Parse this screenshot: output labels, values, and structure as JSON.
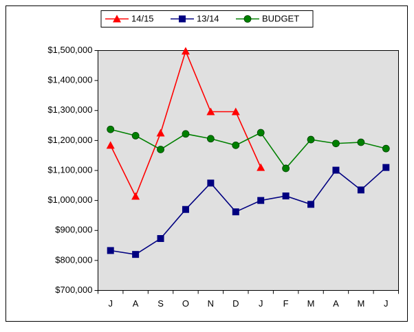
{
  "chart_data": {
    "type": "line",
    "categories": [
      "J",
      "A",
      "S",
      "O",
      "N",
      "D",
      "J",
      "F",
      "M",
      "A",
      "M",
      "J"
    ],
    "series": [
      {
        "name": "14/15",
        "color": "#ff0000",
        "marker": "triangle",
        "values": [
          1184000,
          1014000,
          1225000,
          1498000,
          1296000,
          1296000,
          1110000,
          null,
          null,
          null,
          null,
          null
        ]
      },
      {
        "name": "13/14",
        "color": "#000080",
        "marker": "square",
        "values": [
          833000,
          820000,
          873000,
          970000,
          1058000,
          962000,
          1000000,
          1015000,
          987000,
          1101000,
          1035000,
          1110000
        ]
      },
      {
        "name": "BUDGET",
        "color": "#008000",
        "marker": "circle",
        "values": [
          1237000,
          1216000,
          1170000,
          1222000,
          1206000,
          1184000,
          1226000,
          1107000,
          1203000,
          1190000,
          1194000,
          1173000
        ]
      }
    ],
    "ylim": [
      700000,
      1500000
    ],
    "yticks": [
      {
        "value": 700000,
        "label": "$700,000"
      },
      {
        "value": 800000,
        "label": "$800,000"
      },
      {
        "value": 900000,
        "label": "$900,000"
      },
      {
        "value": 1000000,
        "label": "$1,000,000"
      },
      {
        "value": 1100000,
        "label": "$1,100,000"
      },
      {
        "value": 1200000,
        "label": "$1,200,000"
      },
      {
        "value": 1300000,
        "label": "$1,300,000"
      },
      {
        "value": 1400000,
        "label": "$1,400,000"
      },
      {
        "value": 1500000,
        "label": "$1,500,000"
      }
    ],
    "grid": false,
    "legend": "top"
  }
}
